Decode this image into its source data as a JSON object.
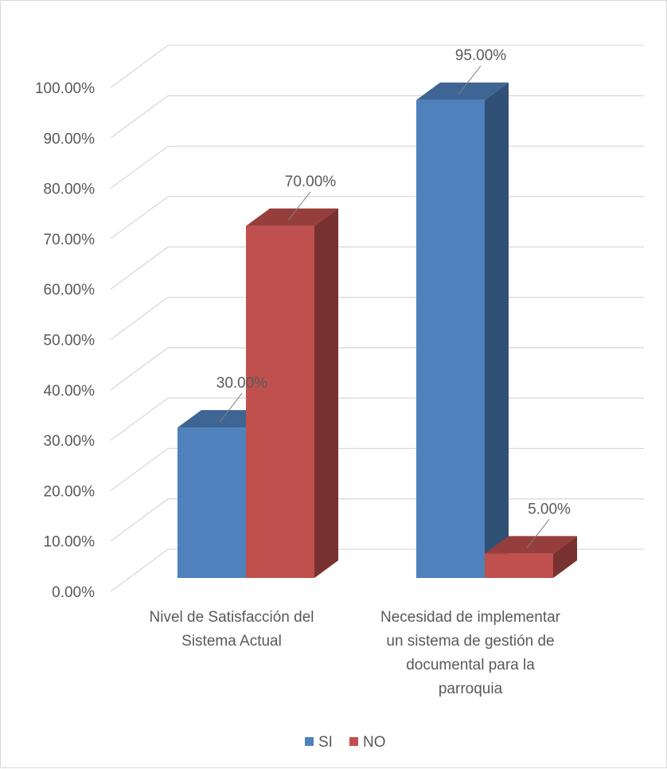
{
  "chart_data": {
    "type": "bar",
    "title": "",
    "xlabel": "",
    "ylabel": "",
    "ylim": [
      0,
      1.0
    ],
    "yticks": [
      0,
      0.1,
      0.2,
      0.3,
      0.4,
      0.5,
      0.6,
      0.7,
      0.8,
      0.9,
      1.0
    ],
    "ytick_labels": [
      "0.00%",
      "10.00%",
      "20.00%",
      "30.00%",
      "40.00%",
      "50.00%",
      "60.00%",
      "70.00%",
      "80.00%",
      "90.00%",
      "100.00%"
    ],
    "categories": [
      [
        "Nivel de Satisfacción del",
        "Sistema Actual"
      ],
      [
        "Necesidad de implementar",
        "un sistema de gestión de",
        "documental para la",
        "parroquia"
      ]
    ],
    "series": [
      {
        "name": "SI",
        "color": "#4f81bd",
        "values": [
          0.3,
          0.95
        ],
        "labels": [
          "30.00%",
          "95.00%"
        ]
      },
      {
        "name": "NO",
        "color": "#c0504d",
        "values": [
          0.7,
          0.05
        ],
        "labels": [
          "70.00%",
          "5.00%"
        ]
      }
    ],
    "legend_position": "bottom",
    "grid": true,
    "style": "3d"
  }
}
